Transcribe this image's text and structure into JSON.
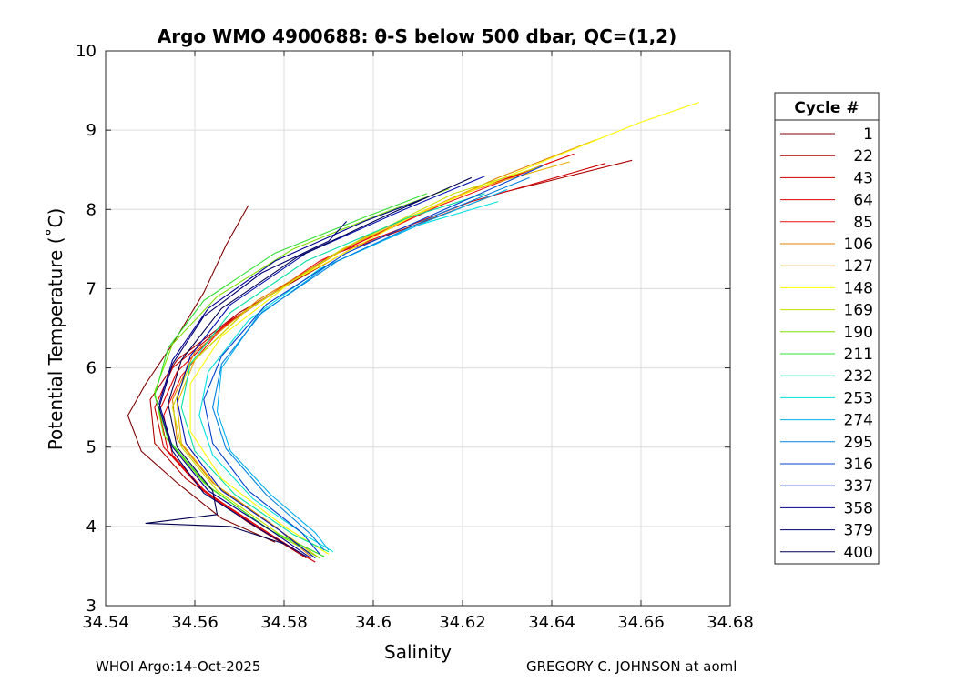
{
  "chart_data": {
    "type": "line",
    "title": "Argo WMO 4900688: θ-S below 500 dbar,  QC=(1,2)",
    "xlabel": "Salinity",
    "ylabel": "Potential Temperature (˚C)",
    "xlim": [
      34.54,
      34.68
    ],
    "ylim": [
      3,
      10
    ],
    "xticks": [
      34.54,
      34.56,
      34.58,
      34.6,
      34.62,
      34.64,
      34.66,
      34.68
    ],
    "xtick_labels": [
      "34.54",
      "34.56",
      "34.58",
      "34.6",
      "34.62",
      "34.64",
      "34.66",
      "34.68"
    ],
    "yticks": [
      3,
      4,
      5,
      6,
      7,
      8,
      9,
      10
    ],
    "ytick_labels": [
      "3",
      "4",
      "5",
      "6",
      "7",
      "8",
      "9",
      "10"
    ],
    "grid": true,
    "legend_title": "Cycle #",
    "legend_position": "right-outside",
    "series": [
      {
        "name": "1",
        "color": "#800000",
        "values": [
          [
            34.572,
            8.05
          ],
          [
            34.567,
            7.55
          ],
          [
            34.562,
            6.95
          ],
          [
            34.555,
            6.3
          ],
          [
            34.549,
            5.8
          ],
          [
            34.545,
            5.4
          ],
          [
            34.548,
            4.95
          ],
          [
            34.556,
            4.55
          ],
          [
            34.566,
            4.1
          ],
          [
            34.578,
            3.8
          ]
        ]
      },
      {
        "name": "22",
        "color": "#b00000",
        "values": [
          [
            34.658,
            8.62
          ],
          [
            34.628,
            8.2
          ],
          [
            34.595,
            7.5
          ],
          [
            34.57,
            6.7
          ],
          [
            34.556,
            6.1
          ],
          [
            34.55,
            5.6
          ],
          [
            34.551,
            5.05
          ],
          [
            34.558,
            4.6
          ],
          [
            34.572,
            4.05
          ],
          [
            34.585,
            3.6
          ]
        ]
      },
      {
        "name": "43",
        "color": "#d00000",
        "values": [
          [
            34.652,
            8.58
          ],
          [
            34.622,
            8.1
          ],
          [
            34.592,
            7.45
          ],
          [
            34.568,
            6.6
          ],
          [
            34.555,
            6.0
          ],
          [
            34.551,
            5.5
          ],
          [
            34.553,
            5.0
          ],
          [
            34.561,
            4.5
          ],
          [
            34.575,
            3.95
          ],
          [
            34.587,
            3.55
          ]
        ]
      },
      {
        "name": "64",
        "color": "#e00000",
        "values": [
          [
            34.645,
            8.7
          ],
          [
            34.618,
            8.15
          ],
          [
            34.59,
            7.4
          ],
          [
            34.567,
            6.55
          ],
          [
            34.556,
            5.95
          ],
          [
            34.552,
            5.45
          ],
          [
            34.554,
            4.95
          ],
          [
            34.562,
            4.45
          ],
          [
            34.577,
            3.9
          ],
          [
            34.586,
            3.58
          ]
        ]
      },
      {
        "name": "85",
        "color": "#ee1010",
        "values": [
          [
            34.64,
            8.6
          ],
          [
            34.615,
            8.05
          ],
          [
            34.588,
            7.35
          ],
          [
            34.566,
            6.5
          ],
          [
            34.557,
            5.9
          ],
          [
            34.553,
            5.4
          ],
          [
            34.555,
            4.9
          ],
          [
            34.563,
            4.4
          ],
          [
            34.578,
            3.85
          ],
          [
            34.584,
            3.65
          ]
        ]
      },
      {
        "name": "106",
        "color": "#e08000",
        "values": [
          [
            34.65,
            8.88
          ],
          [
            34.628,
            8.4
          ],
          [
            34.598,
            7.65
          ],
          [
            34.574,
            6.85
          ],
          [
            34.56,
            6.2
          ],
          [
            34.555,
            5.6
          ],
          [
            34.556,
            5.1
          ],
          [
            34.564,
            4.55
          ],
          [
            34.578,
            4.0
          ],
          [
            34.586,
            3.62
          ]
        ]
      },
      {
        "name": "127",
        "color": "#e8b000",
        "values": [
          [
            34.644,
            8.6
          ],
          [
            34.622,
            8.25
          ],
          [
            34.595,
            7.55
          ],
          [
            34.572,
            6.75
          ],
          [
            34.56,
            6.1
          ],
          [
            34.556,
            5.55
          ],
          [
            34.557,
            5.05
          ],
          [
            34.565,
            4.5
          ],
          [
            34.579,
            3.95
          ],
          [
            34.588,
            3.6
          ]
        ]
      },
      {
        "name": "148",
        "color": "#ffff00",
        "values": [
          [
            34.673,
            9.35
          ],
          [
            34.66,
            9.1
          ],
          [
            34.64,
            8.65
          ],
          [
            34.61,
            7.95
          ],
          [
            34.582,
            7.1
          ],
          [
            34.566,
            6.4
          ],
          [
            34.559,
            5.8
          ],
          [
            34.559,
            5.2
          ],
          [
            34.566,
            4.6
          ],
          [
            34.58,
            4.0
          ],
          [
            34.59,
            3.65
          ]
        ]
      },
      {
        "name": "169",
        "color": "#c8e000",
        "values": [
          [
            34.638,
            8.55
          ],
          [
            34.618,
            8.2
          ],
          [
            34.593,
            7.5
          ],
          [
            34.571,
            6.7
          ],
          [
            34.559,
            6.05
          ],
          [
            34.555,
            5.5
          ],
          [
            34.557,
            5.0
          ],
          [
            34.565,
            4.45
          ],
          [
            34.579,
            3.9
          ],
          [
            34.589,
            3.62
          ]
        ]
      },
      {
        "name": "190",
        "color": "#80e000",
        "values": [
          [
            34.617,
            8.26
          ],
          [
            34.602,
            7.95
          ],
          [
            34.582,
            7.5
          ],
          [
            34.565,
            6.9
          ],
          [
            34.555,
            6.3
          ],
          [
            34.551,
            5.7
          ],
          [
            34.553,
            5.15
          ],
          [
            34.562,
            4.55
          ],
          [
            34.576,
            3.98
          ],
          [
            34.588,
            3.6
          ]
        ]
      },
      {
        "name": "211",
        "color": "#30e030",
        "values": [
          [
            34.612,
            8.2
          ],
          [
            34.598,
            7.9
          ],
          [
            34.578,
            7.45
          ],
          [
            34.562,
            6.85
          ],
          [
            34.554,
            6.25
          ],
          [
            34.551,
            5.65
          ],
          [
            34.554,
            5.1
          ],
          [
            34.563,
            4.5
          ],
          [
            34.577,
            3.95
          ],
          [
            34.589,
            3.62
          ]
        ]
      },
      {
        "name": "232",
        "color": "#00e0a0",
        "values": [
          [
            34.625,
            8.2
          ],
          [
            34.608,
            7.9
          ],
          [
            34.585,
            7.35
          ],
          [
            34.568,
            6.7
          ],
          [
            34.559,
            6.05
          ],
          [
            34.557,
            5.5
          ],
          [
            34.56,
            4.95
          ],
          [
            34.569,
            4.4
          ],
          [
            34.582,
            3.9
          ],
          [
            34.59,
            3.68
          ]
        ]
      },
      {
        "name": "253",
        "color": "#00e0e0",
        "values": [
          [
            34.628,
            8.1
          ],
          [
            34.61,
            7.8
          ],
          [
            34.588,
            7.25
          ],
          [
            34.572,
            6.6
          ],
          [
            34.563,
            5.95
          ],
          [
            34.561,
            5.4
          ],
          [
            34.564,
            4.9
          ],
          [
            34.573,
            4.35
          ],
          [
            34.585,
            3.88
          ],
          [
            34.591,
            3.68
          ]
        ]
      },
      {
        "name": "274",
        "color": "#00b0f0",
        "values": [
          [
            34.63,
            8.25
          ],
          [
            34.612,
            7.85
          ],
          [
            34.59,
            7.3
          ],
          [
            34.574,
            6.65
          ],
          [
            34.566,
            6.0
          ],
          [
            34.565,
            5.45
          ],
          [
            34.568,
            4.95
          ],
          [
            34.577,
            4.4
          ],
          [
            34.587,
            3.92
          ],
          [
            34.59,
            3.7
          ]
        ]
      },
      {
        "name": "295",
        "color": "#0080e0",
        "values": [
          [
            34.635,
            8.4
          ],
          [
            34.615,
            7.95
          ],
          [
            34.592,
            7.35
          ],
          [
            34.575,
            6.7
          ],
          [
            34.566,
            6.05
          ],
          [
            34.564,
            5.5
          ],
          [
            34.567,
            4.98
          ],
          [
            34.576,
            4.4
          ],
          [
            34.586,
            3.9
          ],
          [
            34.589,
            3.7
          ]
        ]
      },
      {
        "name": "316",
        "color": "#0040d0",
        "values": [
          [
            34.638,
            8.55
          ],
          [
            34.618,
            8.05
          ],
          [
            34.594,
            7.45
          ],
          [
            34.576,
            6.8
          ],
          [
            34.566,
            6.15
          ],
          [
            34.562,
            5.6
          ],
          [
            34.564,
            5.05
          ],
          [
            34.572,
            4.45
          ],
          [
            34.584,
            3.92
          ],
          [
            34.588,
            3.65
          ]
        ]
      },
      {
        "name": "337",
        "color": "#0010b0",
        "values": [
          [
            34.625,
            8.42
          ],
          [
            34.607,
            8.0
          ],
          [
            34.585,
            7.45
          ],
          [
            34.568,
            6.8
          ],
          [
            34.559,
            6.15
          ],
          [
            34.556,
            5.6
          ],
          [
            34.558,
            5.05
          ],
          [
            34.566,
            4.45
          ],
          [
            34.579,
            3.95
          ],
          [
            34.587,
            3.6
          ]
        ]
      },
      {
        "name": "358",
        "color": "#000090",
        "values": [
          [
            34.612,
            8.15
          ],
          [
            34.598,
            7.85
          ],
          [
            34.578,
            7.35
          ],
          [
            34.563,
            6.75
          ],
          [
            34.555,
            6.1
          ],
          [
            34.552,
            5.55
          ],
          [
            34.555,
            5.0
          ],
          [
            34.563,
            4.45
          ],
          [
            34.577,
            3.95
          ],
          [
            34.586,
            3.6
          ]
        ]
      },
      {
        "name": "379",
        "color": "#000070",
        "values": [
          [
            34.594,
            7.85
          ],
          [
            34.59,
            7.6
          ],
          [
            34.575,
            7.2
          ],
          [
            34.562,
            6.65
          ],
          [
            34.555,
            6.05
          ],
          [
            34.552,
            5.5
          ],
          [
            34.555,
            4.95
          ],
          [
            34.562,
            4.42
          ],
          [
            34.575,
            3.95
          ],
          [
            34.585,
            3.62
          ]
        ]
      },
      {
        "name": "400",
        "color": "#000050",
        "values": [
          [
            34.622,
            8.4
          ],
          [
            34.604,
            7.95
          ],
          [
            34.583,
            7.4
          ],
          [
            34.566,
            6.75
          ],
          [
            34.557,
            6.1
          ],
          [
            34.554,
            5.55
          ],
          [
            34.556,
            5.0
          ],
          [
            34.564,
            4.45
          ],
          [
            34.565,
            4.15
          ],
          [
            34.549,
            4.04
          ],
          [
            34.568,
            4.0
          ],
          [
            34.58,
            3.78
          ]
        ]
      }
    ]
  },
  "footer": {
    "left": "WHOI Argo:14-Oct-2025",
    "right": "GREGORY C. JOHNSON at aoml"
  }
}
